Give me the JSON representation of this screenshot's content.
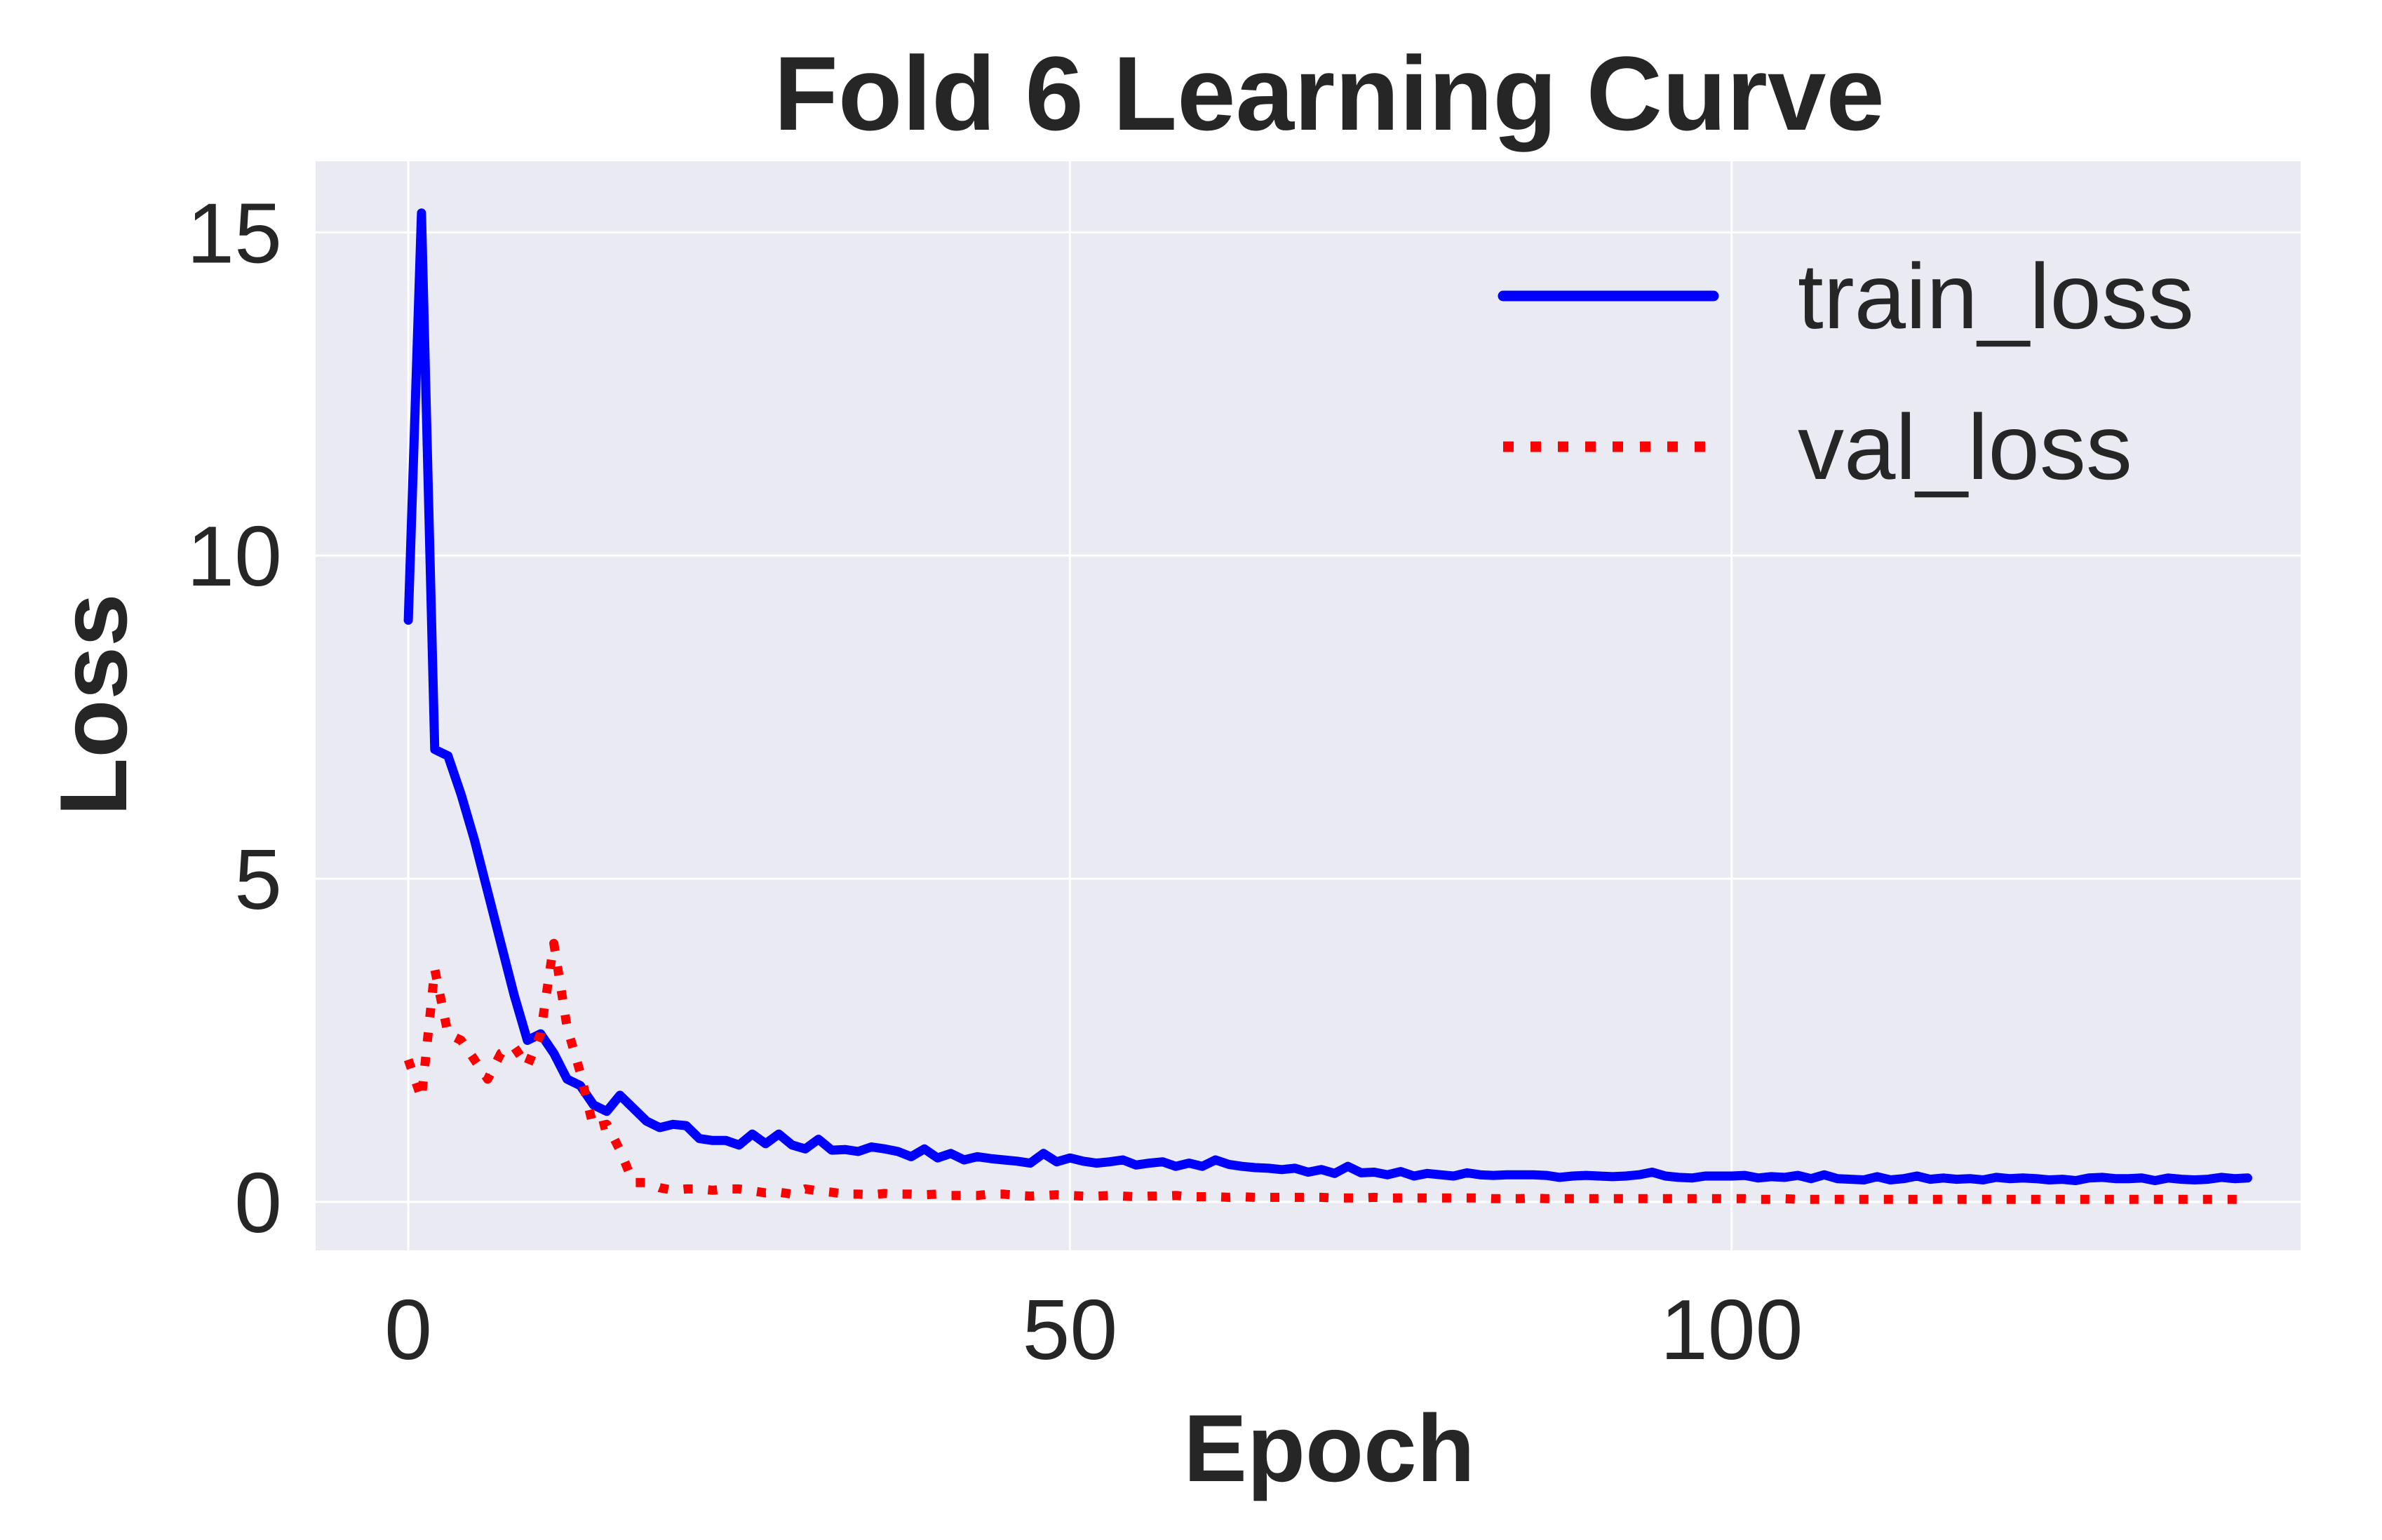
{
  "chart_data": {
    "type": "line",
    "title": "Fold 6 Learning Curve",
    "xlabel": "Epoch",
    "ylabel": "Loss",
    "xlim": [
      -7,
      143
    ],
    "ylim": [
      -0.75,
      16.1
    ],
    "xticks": [
      0,
      50,
      100
    ],
    "yticks": [
      0,
      5,
      10,
      15
    ],
    "grid": true,
    "legend_position": "top-right",
    "background_color": "#eaeaf2",
    "grid_color": "#ffffff",
    "series": [
      {
        "name": "train_loss",
        "color": "#0000ff",
        "style": "solid",
        "x": [
          0,
          1,
          2,
          3,
          4,
          5,
          6,
          7,
          8,
          9,
          10,
          11,
          12,
          13,
          14,
          15,
          16,
          17,
          18,
          19,
          20,
          21,
          22,
          23,
          24,
          25,
          26,
          27,
          28,
          29,
          30,
          31,
          32,
          33,
          34,
          35,
          36,
          37,
          38,
          39,
          40,
          41,
          42,
          43,
          44,
          45,
          46,
          47,
          48,
          49,
          50,
          51,
          52,
          53,
          54,
          55,
          56,
          57,
          58,
          59,
          60,
          61,
          62,
          63,
          64,
          65,
          66,
          67,
          68,
          69,
          70,
          71,
          72,
          73,
          74,
          75,
          76,
          77,
          78,
          79,
          80,
          81,
          82,
          83,
          84,
          85,
          86,
          87,
          88,
          89,
          90,
          91,
          92,
          93,
          94,
          95,
          96,
          97,
          98,
          99,
          100,
          101,
          102,
          103,
          104,
          105,
          106,
          107,
          108,
          109,
          110,
          111,
          112,
          113,
          114,
          115,
          116,
          117,
          118,
          119,
          120,
          121,
          122,
          123,
          124,
          125,
          126,
          127,
          128,
          129,
          130,
          131,
          132,
          133,
          134,
          135,
          136,
          137,
          138,
          139
        ],
        "y": [
          9.0,
          15.3,
          7.0,
          6.9,
          6.3,
          5.6,
          4.8,
          4.0,
          3.2,
          2.5,
          2.6,
          2.3,
          1.9,
          1.8,
          1.5,
          1.4,
          1.65,
          1.45,
          1.25,
          1.15,
          1.2,
          1.18,
          0.98,
          0.95,
          0.95,
          0.88,
          1.05,
          0.9,
          1.05,
          0.88,
          0.82,
          0.97,
          0.8,
          0.81,
          0.78,
          0.85,
          0.82,
          0.78,
          0.7,
          0.82,
          0.68,
          0.75,
          0.65,
          0.7,
          0.67,
          0.65,
          0.63,
          0.6,
          0.75,
          0.62,
          0.68,
          0.63,
          0.6,
          0.62,
          0.65,
          0.57,
          0.6,
          0.62,
          0.55,
          0.6,
          0.55,
          0.65,
          0.58,
          0.55,
          0.53,
          0.52,
          0.5,
          0.52,
          0.46,
          0.5,
          0.44,
          0.55,
          0.45,
          0.46,
          0.42,
          0.47,
          0.4,
          0.44,
          0.42,
          0.4,
          0.45,
          0.42,
          0.41,
          0.42,
          0.42,
          0.42,
          0.41,
          0.38,
          0.4,
          0.41,
          0.4,
          0.39,
          0.4,
          0.42,
          0.46,
          0.4,
          0.38,
          0.37,
          0.4,
          0.4,
          0.4,
          0.41,
          0.37,
          0.39,
          0.38,
          0.41,
          0.36,
          0.42,
          0.36,
          0.35,
          0.34,
          0.39,
          0.34,
          0.36,
          0.4,
          0.35,
          0.37,
          0.35,
          0.36,
          0.34,
          0.38,
          0.36,
          0.37,
          0.36,
          0.34,
          0.35,
          0.33,
          0.37,
          0.38,
          0.36,
          0.36,
          0.37,
          0.33,
          0.37,
          0.35,
          0.34,
          0.35,
          0.38,
          0.36,
          0.37
        ]
      },
      {
        "name": "val_loss",
        "color": "#ff0000",
        "style": "dotted",
        "x": [
          0,
          1,
          2,
          3,
          4,
          5,
          6,
          7,
          8,
          9,
          10,
          11,
          12,
          13,
          14,
          15,
          16,
          17,
          18,
          19,
          20,
          21,
          22,
          23,
          24,
          25,
          26,
          27,
          28,
          29,
          30,
          31,
          32,
          33,
          34,
          35,
          36,
          37,
          38,
          39,
          40,
          41,
          42,
          43,
          44,
          45,
          46,
          47,
          48,
          49,
          50,
          51,
          52,
          53,
          54,
          55,
          56,
          57,
          58,
          59,
          60,
          61,
          62,
          63,
          64,
          65,
          66,
          67,
          68,
          69,
          70,
          71,
          72,
          73,
          74,
          75,
          76,
          77,
          78,
          79,
          80,
          81,
          82,
          83,
          84,
          85,
          86,
          87,
          88,
          89,
          90,
          91,
          92,
          93,
          94,
          95,
          96,
          97,
          98,
          99,
          100,
          101,
          102,
          103,
          104,
          105,
          106,
          107,
          108,
          109,
          110,
          111,
          112,
          113,
          114,
          115,
          116,
          117,
          118,
          119,
          120,
          121,
          122,
          123,
          124,
          125,
          126,
          127,
          128,
          129,
          130,
          131,
          132,
          133,
          134,
          135,
          136,
          137,
          138,
          139
        ],
        "y": [
          2.2,
          1.6,
          3.6,
          2.6,
          2.5,
          2.2,
          1.9,
          2.3,
          2.4,
          2.1,
          2.6,
          4.0,
          2.7,
          2.0,
          1.15,
          1.2,
          0.8,
          0.3,
          0.3,
          0.22,
          0.18,
          0.2,
          0.2,
          0.18,
          0.2,
          0.2,
          0.17,
          0.14,
          0.15,
          0.12,
          0.2,
          0.17,
          0.15,
          0.12,
          0.12,
          0.11,
          0.13,
          0.12,
          0.12,
          0.11,
          0.12,
          0.1,
          0.1,
          0.1,
          0.12,
          0.12,
          0.1,
          0.09,
          0.1,
          0.11,
          0.1,
          0.09,
          0.09,
          0.1,
          0.09,
          0.08,
          0.09,
          0.09,
          0.1,
          0.08,
          0.08,
          0.08,
          0.07,
          0.08,
          0.07,
          0.07,
          0.07,
          0.07,
          0.07,
          0.07,
          0.06,
          0.06,
          0.06,
          0.07,
          0.06,
          0.06,
          0.06,
          0.06,
          0.06,
          0.06,
          0.06,
          0.06,
          0.05,
          0.05,
          0.05,
          0.06,
          0.05,
          0.05,
          0.05,
          0.05,
          0.05,
          0.05,
          0.05,
          0.05,
          0.05,
          0.05,
          0.05,
          0.05,
          0.05,
          0.05,
          0.05,
          0.05,
          0.04,
          0.04,
          0.05,
          0.04,
          0.04,
          0.04,
          0.04,
          0.04,
          0.04,
          0.04,
          0.04,
          0.04,
          0.04,
          0.04,
          0.04,
          0.04,
          0.04,
          0.04,
          0.04,
          0.04,
          0.04,
          0.04,
          0.04,
          0.04,
          0.04,
          0.04,
          0.04,
          0.04,
          0.04,
          0.04,
          0.04,
          0.04,
          0.04,
          0.04,
          0.04,
          0.04,
          0.04,
          0.04
        ]
      }
    ]
  }
}
